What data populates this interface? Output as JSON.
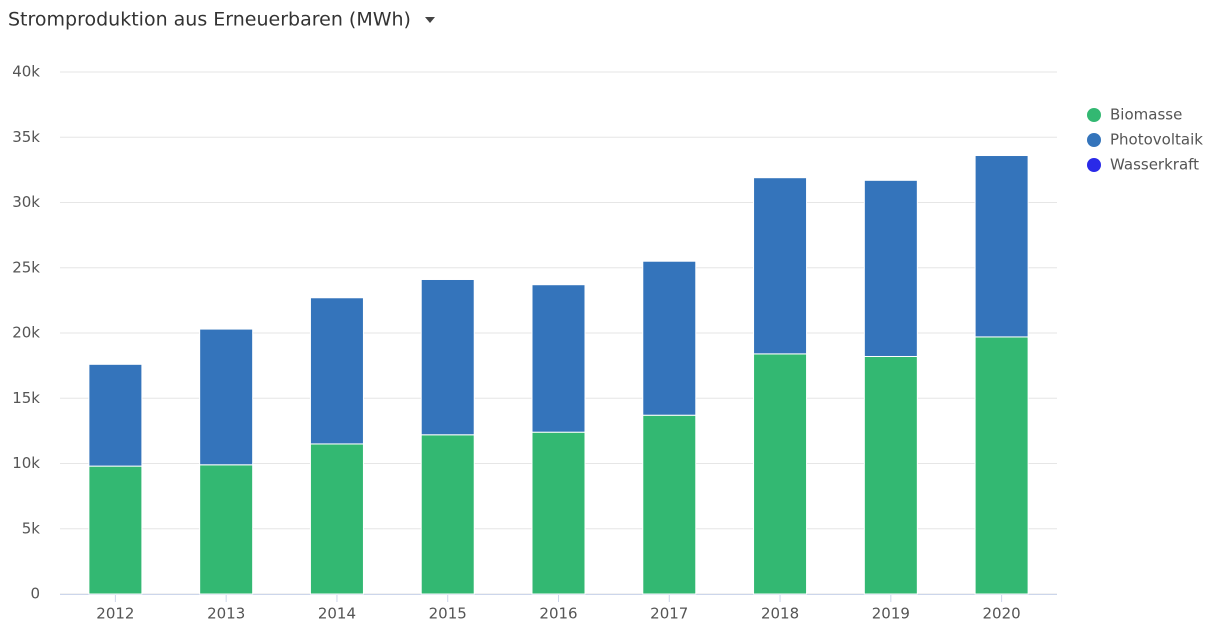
{
  "chart_data": {
    "type": "stacked_bar",
    "title": "Stromproduktion aus Erneuerbaren (MWh)",
    "categories": [
      "2012",
      "2013",
      "2014",
      "2015",
      "2016",
      "2017",
      "2018",
      "2019",
      "2020"
    ],
    "series": [
      {
        "name": "Biomasse",
        "color": "#33b872",
        "values": [
          9800,
          9900,
          11500,
          12200,
          12400,
          13700,
          18400,
          18200,
          19700
        ]
      },
      {
        "name": "Photovoltaik",
        "color": "#3474bb",
        "values": [
          7800,
          10400,
          11200,
          11900,
          11300,
          11800,
          13500,
          13500,
          13900
        ]
      },
      {
        "name": "Wasserkraft",
        "color": "#2a2ae8",
        "values": [
          0,
          0,
          0,
          0,
          0,
          0,
          0,
          0,
          0
        ]
      }
    ],
    "ylim": [
      0,
      40000
    ],
    "yticks": [
      0,
      {
        "value": 5000,
        "label": "5k"
      },
      {
        "value": 10000,
        "label": "10k"
      },
      {
        "value": 15000,
        "label": "15k"
      },
      {
        "value": 20000,
        "label": "20k"
      },
      {
        "value": 25000,
        "label": "25k"
      },
      {
        "value": 30000,
        "label": "30k"
      },
      {
        "value": 35000,
        "label": "35k"
      },
      {
        "value": 40000,
        "label": "40k"
      }
    ],
    "grid": true,
    "legend": "right"
  }
}
